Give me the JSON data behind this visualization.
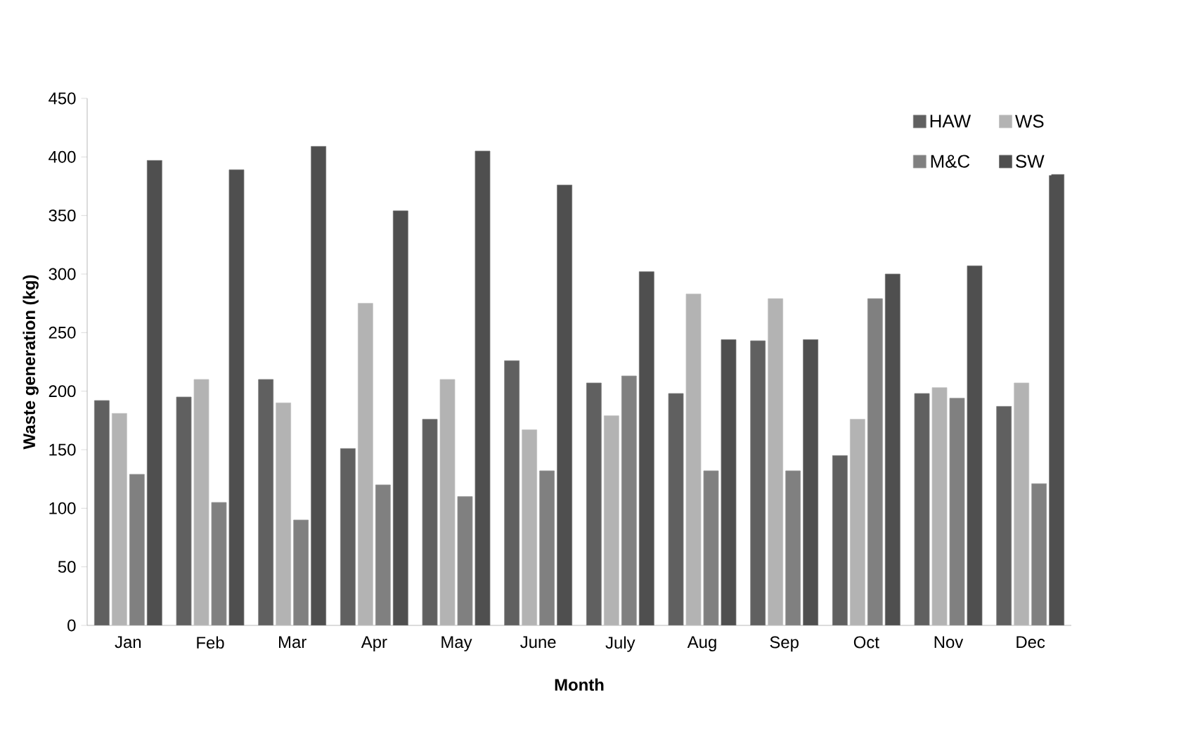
{
  "chart_data": {
    "type": "bar",
    "xlabel": "Month",
    "ylabel": "Waste generation (kg)",
    "categories": [
      "Jan",
      "Feb",
      "Mar",
      "Apr",
      "May",
      "June",
      "July",
      "Aug",
      "Sep",
      "Oct",
      "Nov",
      "Dec"
    ],
    "series": [
      {
        "name": "HAW",
        "color": "#606060",
        "values": [
          192,
          195,
          210,
          151,
          176,
          226,
          207,
          198,
          243,
          145,
          198,
          187
        ]
      },
      {
        "name": "WS",
        "color": "#b3b3b3",
        "values": [
          181,
          210,
          190,
          275,
          210,
          167,
          179,
          283,
          279,
          176,
          203,
          207
        ]
      },
      {
        "name": "M&C",
        "color": "#808080",
        "values": [
          129,
          105,
          90,
          120,
          110,
          132,
          213,
          132,
          132,
          279,
          194,
          121
        ]
      },
      {
        "name": "SW",
        "color": "#4f4f4f",
        "values": [
          397,
          389,
          409,
          354,
          405,
          376,
          302,
          244,
          244,
          300,
          307,
          385
        ]
      }
    ],
    "ylim": [
      0,
      450
    ],
    "yticks": [
      0,
      50,
      100,
      150,
      200,
      250,
      300,
      350,
      400,
      450
    ],
    "grid": false,
    "legend": "top right"
  }
}
